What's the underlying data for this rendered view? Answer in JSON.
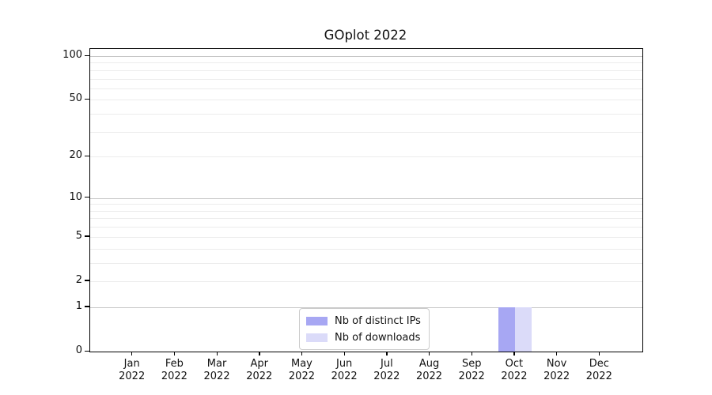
{
  "chart_data": {
    "type": "bar",
    "title": "GOplot 2022",
    "categories": [
      "Jan",
      "Feb",
      "Mar",
      "Apr",
      "May",
      "Jun",
      "Jul",
      "Aug",
      "Sep",
      "Oct",
      "Nov",
      "Dec"
    ],
    "year_label": "2022",
    "series": [
      {
        "name": "Nb of distinct IPs",
        "color": "#a7a7f3",
        "values": [
          0,
          0,
          0,
          0,
          0,
          0,
          0,
          0,
          0,
          1,
          0,
          0
        ]
      },
      {
        "name": "Nb of downloads",
        "color": "#dbdbf9",
        "values": [
          0,
          0,
          0,
          0,
          0,
          0,
          0,
          0,
          0,
          1,
          0,
          0
        ]
      }
    ],
    "yscale": "log1p",
    "ylim": [
      0,
      128
    ],
    "ymax_reference": 100,
    "yticks": [
      {
        "label": "0",
        "value": 0
      },
      {
        "label": "1",
        "value": 1
      },
      {
        "label": "2",
        "value": 2
      },
      {
        "label": "5",
        "value": 5
      },
      {
        "label": "10",
        "value": 10
      },
      {
        "label": "20",
        "value": 20
      },
      {
        "label": "50",
        "value": 50
      },
      {
        "label": "100",
        "value": 100
      }
    ],
    "major_gridlines": [
      1,
      10,
      100
    ],
    "minor_gridlines": [
      2,
      3,
      4,
      5,
      6,
      7,
      8,
      9,
      20,
      30,
      40,
      50,
      60,
      70,
      80,
      90
    ],
    "grid": true,
    "legend_position": "lower-center"
  },
  "colors": {
    "background": "#ffffff",
    "axis": "#000000",
    "text": "#111111",
    "grid_major": "#c6c6c6",
    "grid_minor": "#ececec",
    "legend_border": "#cccccc",
    "legend_background": "#ffffff"
  }
}
